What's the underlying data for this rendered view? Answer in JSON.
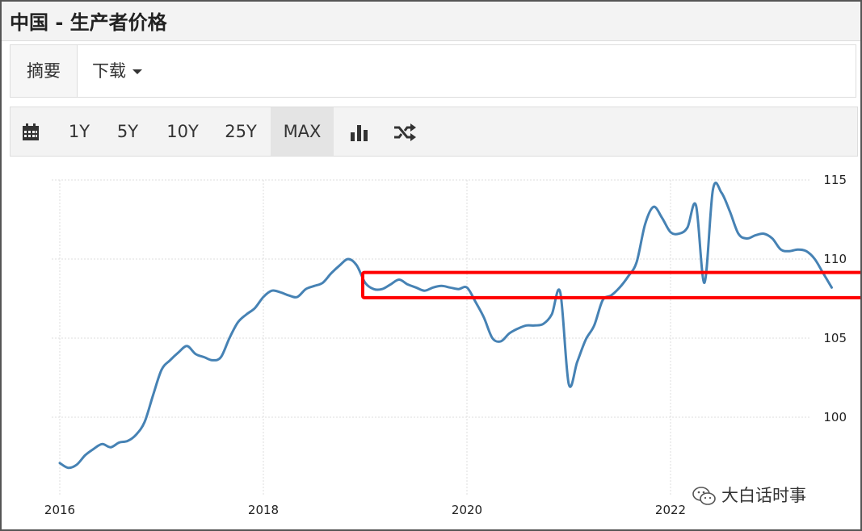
{
  "header": {
    "title": "中国 - 生产者价格"
  },
  "tabs": [
    {
      "label": "摘要"
    },
    {
      "label": "下载"
    }
  ],
  "toolbar": {
    "ranges": [
      "1Y",
      "5Y",
      "10Y",
      "25Y",
      "MAX"
    ],
    "selected": "MAX",
    "icons": [
      "calendar-icon",
      "bar-chart-icon",
      "shuffle-icon"
    ]
  },
  "colors": {
    "line": "#4682b4",
    "highlight": "#ff0000",
    "grid": "#dddddd"
  },
  "watermark": {
    "text": "大白话时事",
    "icon": "wechat-icon"
  },
  "chart_data": {
    "type": "line",
    "title": "",
    "xlabel": "",
    "ylabel": "",
    "x_ticks": [
      "2016",
      "2018",
      "2020",
      "2022"
    ],
    "y_ticks": [
      100,
      105,
      110,
      115
    ],
    "ylim": [
      95,
      116.5
    ],
    "grid": true,
    "y_axis_side": "right",
    "annotation": {
      "type": "rectangle",
      "color": "#ff0000",
      "x_range": [
        "2019-01",
        "2023-09"
      ],
      "y_range": [
        107.3,
        109.1
      ]
    },
    "series": [
      {
        "values": [
          {
            "x": "2016-01",
            "y": 97.1
          },
          {
            "x": "2016-02",
            "y": 96.8
          },
          {
            "x": "2016-03",
            "y": 97.0
          },
          {
            "x": "2016-04",
            "y": 97.6
          },
          {
            "x": "2016-05",
            "y": 98.0
          },
          {
            "x": "2016-06",
            "y": 98.3
          },
          {
            "x": "2016-07",
            "y": 98.1
          },
          {
            "x": "2016-08",
            "y": 98.4
          },
          {
            "x": "2016-09",
            "y": 98.5
          },
          {
            "x": "2016-10",
            "y": 98.9
          },
          {
            "x": "2016-11",
            "y": 99.7
          },
          {
            "x": "2016-12",
            "y": 101.4
          },
          {
            "x": "2017-01",
            "y": 103.0
          },
          {
            "x": "2017-02",
            "y": 103.6
          },
          {
            "x": "2017-03",
            "y": 104.1
          },
          {
            "x": "2017-04",
            "y": 104.5
          },
          {
            "x": "2017-05",
            "y": 104.0
          },
          {
            "x": "2017-06",
            "y": 103.8
          },
          {
            "x": "2017-07",
            "y": 103.6
          },
          {
            "x": "2017-08",
            "y": 103.8
          },
          {
            "x": "2017-09",
            "y": 105.0
          },
          {
            "x": "2017-10",
            "y": 106.0
          },
          {
            "x": "2017-11",
            "y": 106.5
          },
          {
            "x": "2017-12",
            "y": 106.9
          },
          {
            "x": "2018-01",
            "y": 107.6
          },
          {
            "x": "2018-02",
            "y": 108.0
          },
          {
            "x": "2018-03",
            "y": 107.9
          },
          {
            "x": "2018-04",
            "y": 107.7
          },
          {
            "x": "2018-05",
            "y": 107.6
          },
          {
            "x": "2018-06",
            "y": 108.1
          },
          {
            "x": "2018-07",
            "y": 108.3
          },
          {
            "x": "2018-08",
            "y": 108.5
          },
          {
            "x": "2018-09",
            "y": 109.1
          },
          {
            "x": "2018-10",
            "y": 109.6
          },
          {
            "x": "2018-11",
            "y": 110.0
          },
          {
            "x": "2018-12",
            "y": 109.6
          },
          {
            "x": "2019-01",
            "y": 108.5
          },
          {
            "x": "2019-02",
            "y": 108.1
          },
          {
            "x": "2019-03",
            "y": 108.1
          },
          {
            "x": "2019-04",
            "y": 108.4
          },
          {
            "x": "2019-05",
            "y": 108.7
          },
          {
            "x": "2019-06",
            "y": 108.4
          },
          {
            "x": "2019-07",
            "y": 108.2
          },
          {
            "x": "2019-08",
            "y": 108.0
          },
          {
            "x": "2019-09",
            "y": 108.2
          },
          {
            "x": "2019-10",
            "y": 108.3
          },
          {
            "x": "2019-11",
            "y": 108.2
          },
          {
            "x": "2019-12",
            "y": 108.1
          },
          {
            "x": "2020-01",
            "y": 108.2
          },
          {
            "x": "2020-02",
            "y": 107.3
          },
          {
            "x": "2020-03",
            "y": 106.3
          },
          {
            "x": "2020-04",
            "y": 105.0
          },
          {
            "x": "2020-05",
            "y": 104.8
          },
          {
            "x": "2020-06",
            "y": 105.3
          },
          {
            "x": "2020-07",
            "y": 105.6
          },
          {
            "x": "2020-08",
            "y": 105.8
          },
          {
            "x": "2020-09",
            "y": 105.8
          },
          {
            "x": "2020-10",
            "y": 105.9
          },
          {
            "x": "2020-11",
            "y": 106.5
          },
          {
            "x": "2020-12",
            "y": 107.9
          },
          {
            "x": "2021-01",
            "y": 102.1
          },
          {
            "x": "2021-02",
            "y": 103.5
          },
          {
            "x": "2021-03",
            "y": 104.9
          },
          {
            "x": "2021-04",
            "y": 105.8
          },
          {
            "x": "2021-05",
            "y": 107.4
          },
          {
            "x": "2021-06",
            "y": 107.7
          },
          {
            "x": "2021-07",
            "y": 108.2
          },
          {
            "x": "2021-08",
            "y": 108.9
          },
          {
            "x": "2021-09",
            "y": 109.8
          },
          {
            "x": "2021-10",
            "y": 112.2
          },
          {
            "x": "2021-11",
            "y": 113.3
          },
          {
            "x": "2021-12",
            "y": 112.6
          },
          {
            "x": "2022-01",
            "y": 111.7
          },
          {
            "x": "2022-02",
            "y": 111.6
          },
          {
            "x": "2022-03",
            "y": 112.0
          },
          {
            "x": "2022-04",
            "y": 113.4
          },
          {
            "x": "2022-05",
            "y": 108.5
          },
          {
            "x": "2022-06",
            "y": 114.4
          },
          {
            "x": "2022-07",
            "y": 114.2
          },
          {
            "x": "2022-08",
            "y": 113.0
          },
          {
            "x": "2022-09",
            "y": 111.6
          },
          {
            "x": "2022-10",
            "y": 111.3
          },
          {
            "x": "2022-11",
            "y": 111.5
          },
          {
            "x": "2022-12",
            "y": 111.6
          },
          {
            "x": "2023-01",
            "y": 111.3
          },
          {
            "x": "2023-02",
            "y": 110.6
          },
          {
            "x": "2023-03",
            "y": 110.5
          },
          {
            "x": "2023-04",
            "y": 110.6
          },
          {
            "x": "2023-05",
            "y": 110.5
          },
          {
            "x": "2023-06",
            "y": 110.0
          },
          {
            "x": "2023-07",
            "y": 109.1
          },
          {
            "x": "2023-08",
            "y": 108.2
          }
        ]
      }
    ]
  }
}
